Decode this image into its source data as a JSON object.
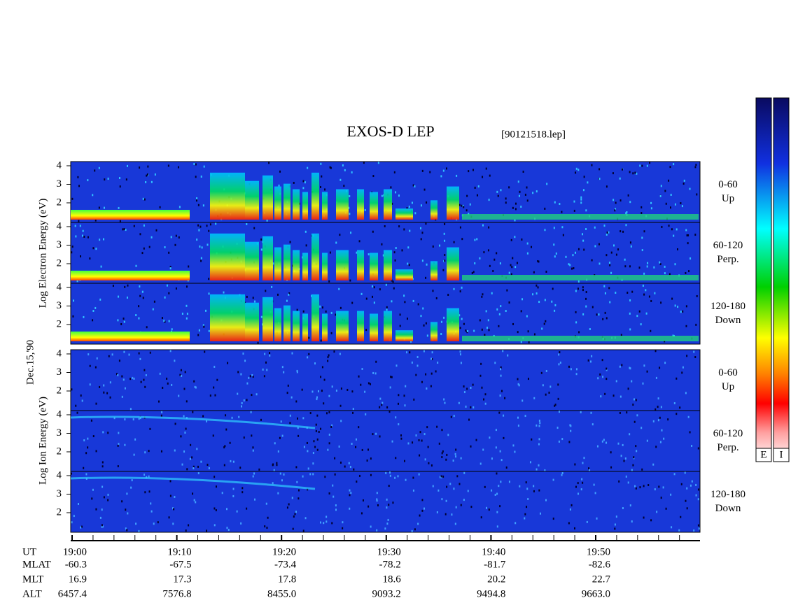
{
  "header": {
    "title": "EXOS-D LEP",
    "file": "[90121518.lep]"
  },
  "date": "Dec.15,'90",
  "electron": {
    "axis_label": "Log Electron Energy (eV)",
    "yticks": [
      4,
      3,
      2
    ],
    "panels": [
      {
        "angle": "0-60",
        "direction": "Up"
      },
      {
        "angle": "60-120",
        "direction": "Perp."
      },
      {
        "angle": "120-180",
        "direction": "Down"
      }
    ]
  },
  "ion": {
    "axis_label": "Log Ion Energy (eV)",
    "yticks": [
      4,
      3,
      2
    ],
    "panels": [
      {
        "angle": "0-60",
        "direction": "Up"
      },
      {
        "angle": "60-120",
        "direction": "Perp."
      },
      {
        "angle": "120-180",
        "direction": "Down"
      }
    ]
  },
  "colorbar_labels": [
    "E",
    "I"
  ],
  "time_table": {
    "rows": [
      {
        "label": "UT",
        "values": [
          "19:00",
          "19:10",
          "19:20",
          "19:30",
          "19:40",
          "19:50"
        ]
      },
      {
        "label": "MLAT",
        "values": [
          "-60.3",
          "-67.5",
          "-73.4",
          "-78.2",
          "-81.7",
          "-82.6"
        ]
      },
      {
        "label": "MLT",
        "values": [
          "16.9",
          "17.3",
          "17.8",
          "18.6",
          "20.2",
          "22.7"
        ]
      },
      {
        "label": "ALT",
        "values": [
          "6457.4",
          "7576.8",
          "8455.0",
          "9093.2",
          "9494.8",
          "9663.0"
        ]
      }
    ]
  }
}
